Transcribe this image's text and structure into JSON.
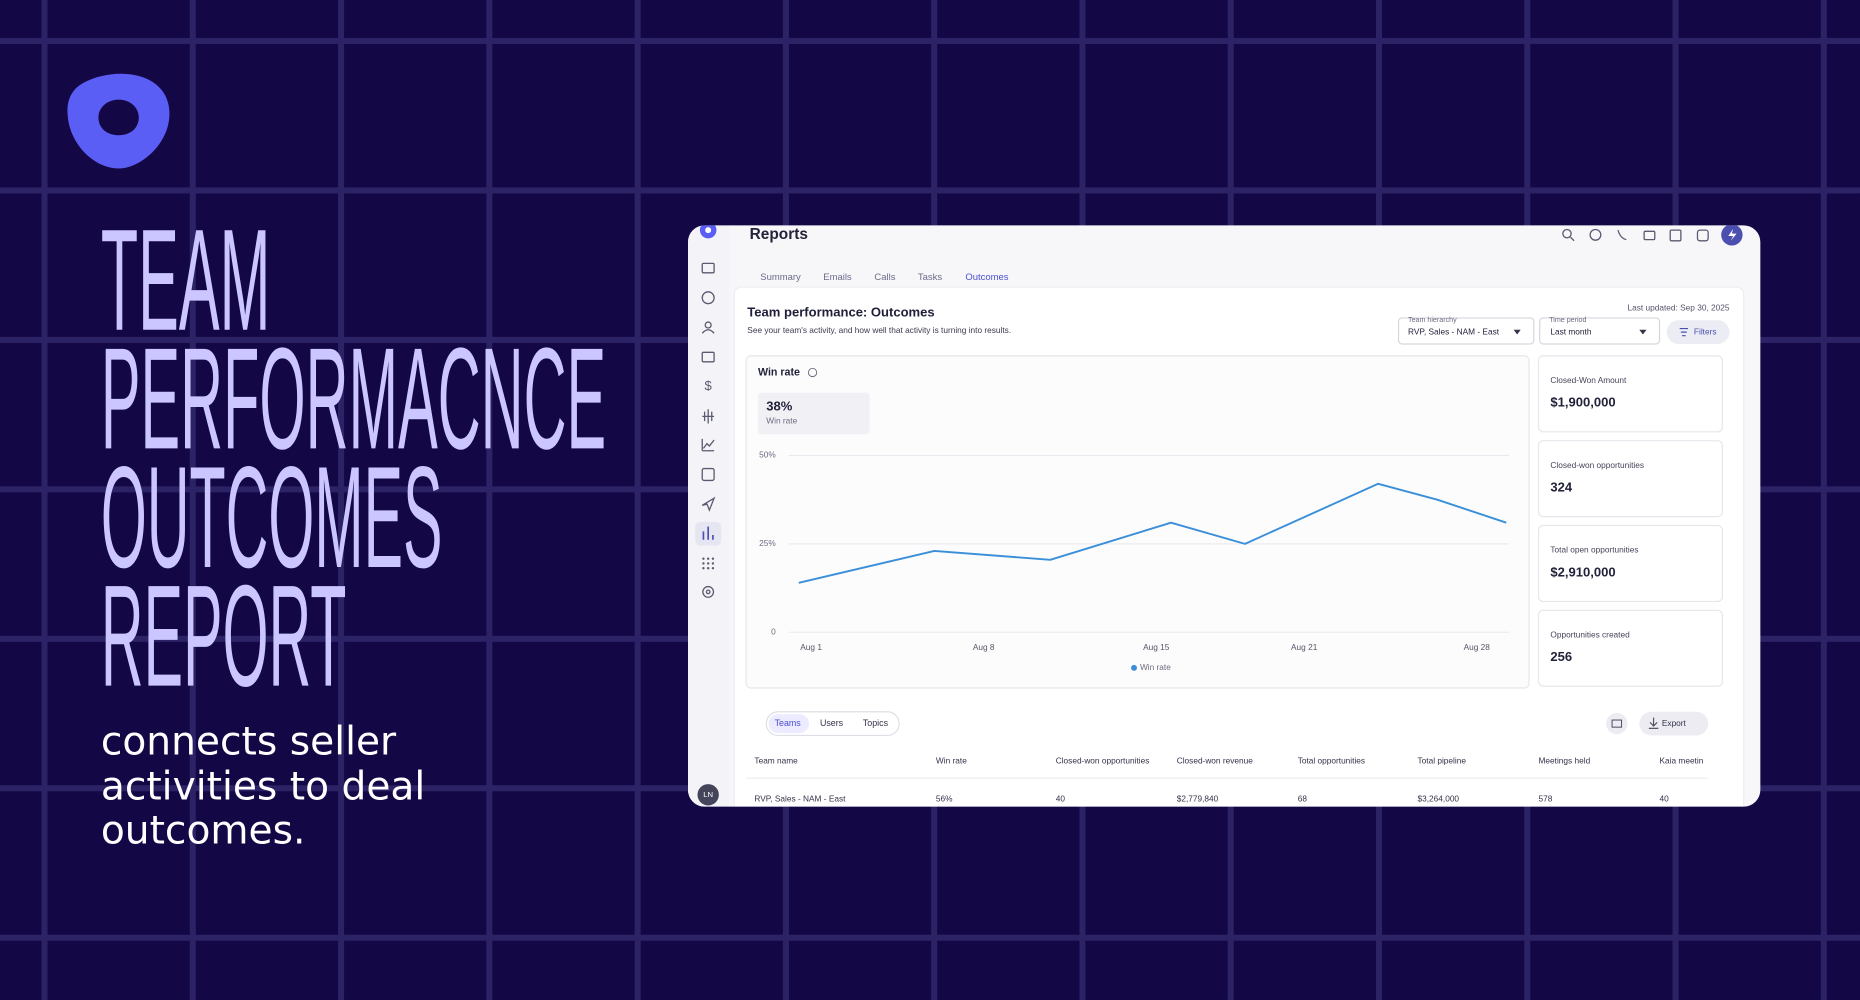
{
  "brand": {
    "title_lines": [
      "TEAM",
      "PERFORMACNCE",
      "OUTCOMES",
      "REPORT"
    ],
    "subtitle": "connects seller activities to deal outcomes."
  },
  "app": {
    "page_title": "Reports",
    "avatar": "LN",
    "tabs": [
      "Summary",
      "Emails",
      "Calls",
      "Tasks",
      "Outcomes"
    ],
    "heading": "Team performance: Outcomes",
    "description": "See your team's activity, and how well that activity is turning into results.",
    "last_updated": "Last updated: Sep 30, 2025",
    "filters": [
      {
        "label": "Team hierarchy",
        "value": "RVP, Sales - NAM - East"
      },
      {
        "label": "Time period",
        "value": "Last month"
      }
    ],
    "filters_button": "Filters",
    "stat": {
      "value": "38%",
      "label": "Win rate"
    },
    "kpis": [
      {
        "label": "Closed-Won Amount",
        "value": "$1,900,000"
      },
      {
        "label": "Closed-won opportunities",
        "value": "324"
      },
      {
        "label": "Total open opportunities",
        "value": "$2,910,000"
      },
      {
        "label": "Opportunities created",
        "value": "256"
      }
    ],
    "table_tabs": [
      "Teams",
      "Users",
      "Topics"
    ],
    "export": "Export",
    "table": {
      "columns": [
        "Team name",
        "Win rate",
        "Closed-won opportunities",
        "Closed-won revenue",
        "Total opportunities",
        "Total pipeline",
        "Meetings held",
        "Kaia meetin"
      ],
      "rows": [
        [
          "RVP, Sales - NAM - East",
          "56%",
          "40",
          "$2,779,840",
          "68",
          "$3,264,000",
          "578",
          "40"
        ]
      ]
    }
  },
  "chart_data": {
    "type": "line",
    "title": "Win rate",
    "x": [
      0.5,
      6,
      10.7,
      15.6,
      18.6,
      24,
      26.4,
      29.2
    ],
    "xlim": [
      0,
      29.4
    ],
    "xticks": [
      {
        "value": 1,
        "label": "Aug 1"
      },
      {
        "value": 8,
        "label": "Aug 8"
      },
      {
        "value": 15,
        "label": "Aug 15"
      },
      {
        "value": 21,
        "label": "Aug 21"
      },
      {
        "value": 28,
        "label": "Aug 28"
      }
    ],
    "series": [
      {
        "name": "Win rate",
        "color": "#3a8fd8",
        "values": [
          14,
          23,
          20.5,
          31,
          25,
          42,
          37.5,
          31
        ]
      }
    ],
    "ylim": [
      0,
      50
    ],
    "yticks": [
      0,
      {
        "value": 25,
        "label": "25%"
      },
      {
        "value": 50,
        "label": "50%"
      }
    ],
    "grid": true
  }
}
